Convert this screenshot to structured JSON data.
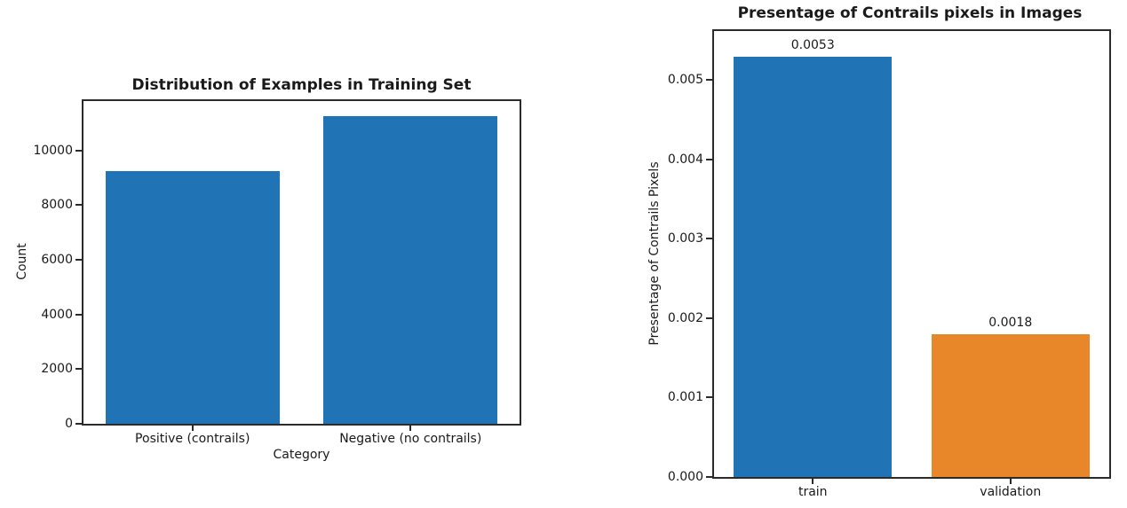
{
  "page": {
    "background": "#ffffff",
    "text_color": "#1a1a1a",
    "spine_color": "#2b2b2b"
  },
  "chart_data": [
    {
      "type": "bar",
      "title": "Distribution of Examples in Training Set",
      "xlabel": "Category",
      "ylabel": "Count",
      "categories": [
        "Positive (contrails)",
        "Negative (no contrails)"
      ],
      "values": [
        9230,
        11260
      ],
      "bar_value_labels": [],
      "bar_colors": [
        "#2073b4",
        "#2073b4"
      ],
      "ytick_values": [
        0,
        2000,
        4000,
        6000,
        8000,
        10000
      ],
      "ytick_labels": [
        "0",
        "2000",
        "4000",
        "6000",
        "8000",
        "10000"
      ],
      "ylim": [
        0,
        11800
      ],
      "bar_width_frac": 0.8,
      "grid": false,
      "legend": null
    },
    {
      "type": "bar",
      "title": "Presentage of Contrails pixels in Images",
      "xlabel": "",
      "ylabel": "Presentage of Contrails Pixels",
      "categories": [
        "train",
        "validation"
      ],
      "values": [
        0.0053,
        0.0018
      ],
      "bar_value_labels": [
        "0.0053",
        "0.0018"
      ],
      "bar_colors": [
        "#2073b4",
        "#e8862a"
      ],
      "ytick_values": [
        0,
        0.001,
        0.002,
        0.003,
        0.004,
        0.005
      ],
      "ytick_labels": [
        "0.000",
        "0.001",
        "0.002",
        "0.003",
        "0.004",
        "0.005"
      ],
      "ylim": [
        0,
        0.00562
      ],
      "bar_width_frac": 0.8,
      "grid": false,
      "legend": null
    }
  ]
}
